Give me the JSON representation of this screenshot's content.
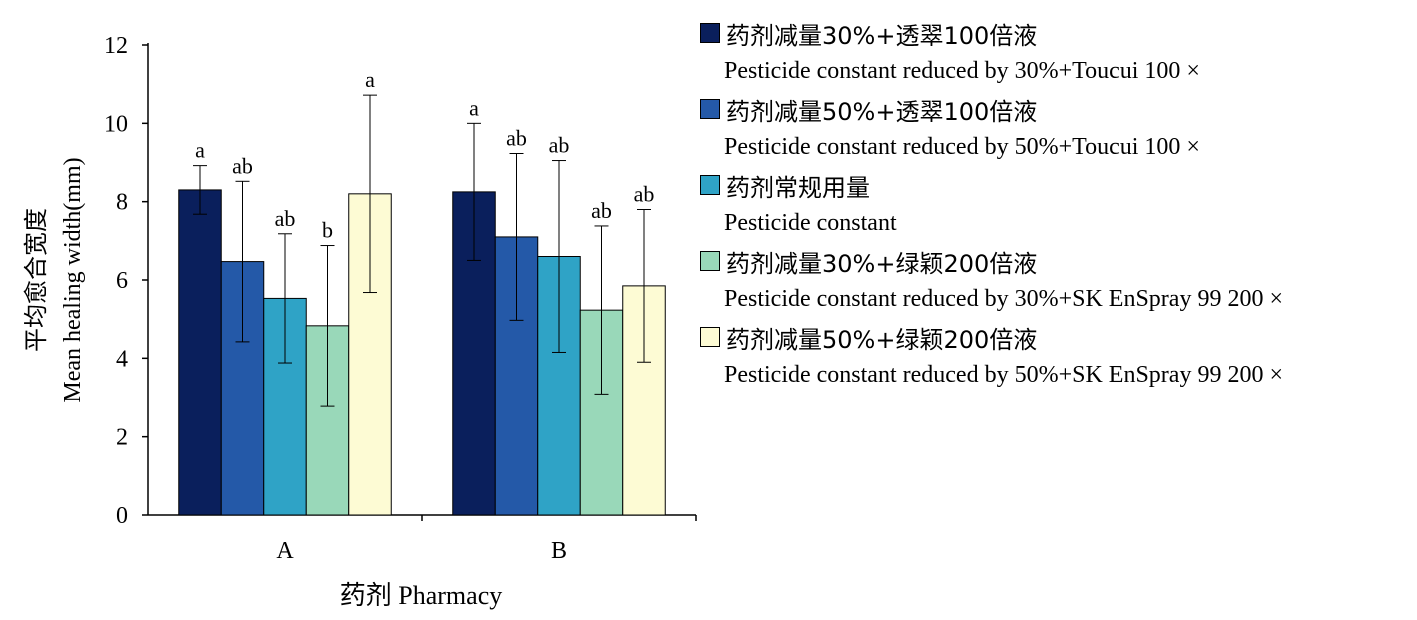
{
  "chart_data": {
    "type": "bar",
    "categories": [
      "A",
      "B"
    ],
    "xlabel": "药剂 Pharmacy",
    "ylabel_cn": "平均愈合宽度",
    "ylabel_en": "Mean healing width(mm)",
    "ylim": [
      0,
      12
    ],
    "yticks": [
      "0",
      "2",
      "4",
      "6",
      "8",
      "10",
      "12"
    ],
    "grid": false,
    "legend_position": "right",
    "series": [
      {
        "name_cn": "药剂减量30%+透翠100倍液",
        "name_en": "Pesticide constant reduced by 30%+Toucui 100 ×",
        "color": "#0a1f5c",
        "values": [
          8.3,
          8.25
        ],
        "errors": [
          0.62,
          1.75
        ],
        "letters": [
          "a",
          "a"
        ]
      },
      {
        "name_cn": "药剂减量50%+透翠100倍液",
        "name_en": "Pesticide constant reduced by 50%+Toucui 100 ×",
        "color": "#2459a8",
        "values": [
          6.47,
          7.1
        ],
        "errors": [
          2.05,
          2.13
        ],
        "letters": [
          "ab",
          "ab"
        ]
      },
      {
        "name_cn": "药剂常规用量",
        "name_en": "Pesticide constant",
        "color": "#2fa3c6",
        "values": [
          5.53,
          6.6
        ],
        "errors": [
          1.65,
          2.45
        ],
        "letters": [
          "ab",
          "ab"
        ]
      },
      {
        "name_cn": "药剂减量30%+绿颖200倍液",
        "name_en": "Pesticide constant reduced by 30%+SK EnSpray 99 200 ×",
        "color": "#99d8b9",
        "values": [
          4.83,
          5.23
        ],
        "errors": [
          2.05,
          2.15
        ],
        "letters": [
          "b",
          "ab"
        ]
      },
      {
        "name_cn": "药剂减量50%+绿颖200倍液",
        "name_en": "Pesticide constant reduced by 50%+SK EnSpray 99 200 ×",
        "color": "#fdfbd4",
        "values": [
          8.2,
          5.85
        ],
        "errors": [
          2.52,
          1.95
        ],
        "letters": [
          "a",
          "ab"
        ]
      }
    ]
  }
}
